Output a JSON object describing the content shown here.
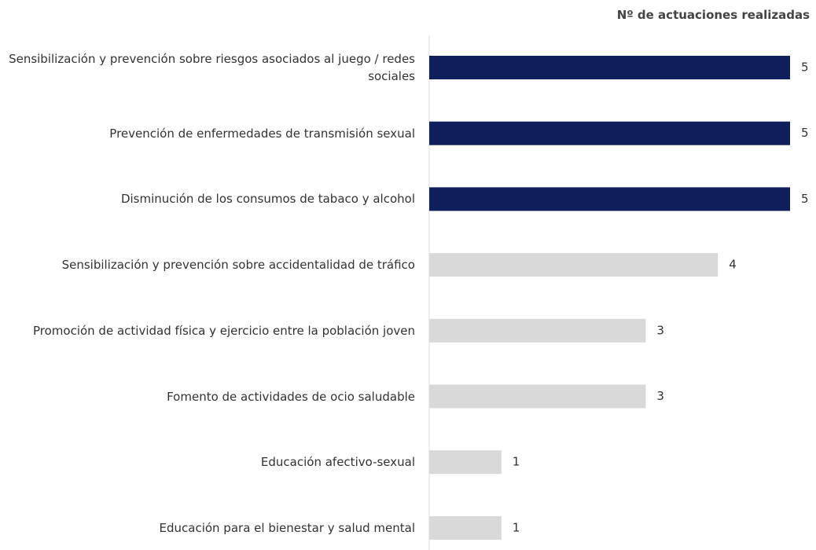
{
  "chart_data": {
    "type": "barh",
    "title": "Nº de actuaciones realizadas",
    "categories": [
      "Sensibilización y prevención sobre riesgos asociados al juego / redes sociales",
      "Prevención de enfermedades de transmisión sexual",
      "Disminución de los consumos de tabaco y alcohol",
      "Sensibilización y prevención sobre accidentalidad de tráfico",
      "Promoción de actividad física y ejercicio entre la población joven",
      "Fomento de actividades de ocio saludable",
      "Educación afectivo-sexual",
      "Educación para el bienestar y salud mental"
    ],
    "values": [
      5,
      5,
      5,
      4,
      3,
      3,
      1,
      1
    ],
    "colors": [
      "#0f1f5c",
      "#0f1f5c",
      "#0f1f5c",
      "#d9d9d9",
      "#d9d9d9",
      "#d9d9d9",
      "#d9d9d9",
      "#d9d9d9"
    ],
    "xlim": [
      0,
      5
    ]
  }
}
